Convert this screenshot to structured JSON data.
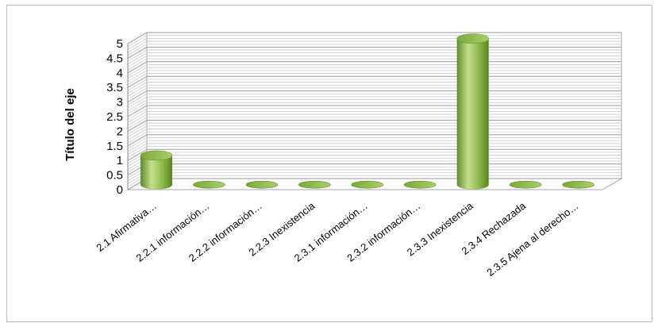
{
  "chart_data": {
    "type": "bar",
    "style": "3d-cylinder",
    "ylabel": "Título del eje",
    "xlabel": "",
    "title": "",
    "ylim": [
      0,
      5
    ],
    "yticks": [
      "0",
      "0.5",
      "1",
      "1.5",
      "2",
      "2.5",
      "3",
      "3.5",
      "4",
      "4.5",
      "5"
    ],
    "grid": true,
    "legend": "none",
    "categories": [
      "2.1 Afirmativa…",
      "2.2.1 información…",
      "2.2.2  información…",
      "2.2.3 Inexistencia",
      "2.3.1  información…",
      "2.3.2  información…",
      "2.3.3 Inexistencia",
      "2.3.4 Rechazada",
      "2.3.5 Ajena al derecho…"
    ],
    "values": [
      1,
      0,
      0,
      0,
      0,
      0,
      5,
      0,
      0
    ],
    "colors": {
      "bar": "#8db84a",
      "bar_dark": "#5e8a25",
      "bar_light": "#c6e08e",
      "grid": "#a6a6a6",
      "wall": "#ffffff"
    }
  }
}
